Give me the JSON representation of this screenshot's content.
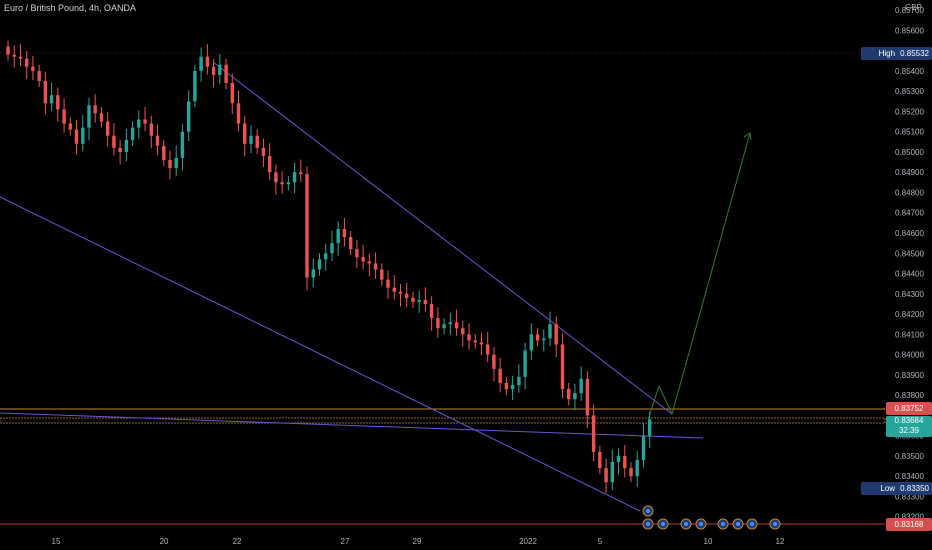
{
  "header": {
    "symbol_title": "Euro / British Pound, 4h, OANDA",
    "currency": "GBP"
  },
  "price_axis": {
    "ticks": [
      "0.85700",
      "0.85600",
      "0.85500",
      "0.85400",
      "0.85300",
      "0.85200",
      "0.85100",
      "0.85000",
      "0.84900",
      "0.84800",
      "0.84700",
      "0.84600",
      "0.84500",
      "0.84400",
      "0.84300",
      "0.84200",
      "0.84100",
      "0.84000",
      "0.83900",
      "0.83800",
      "0.83600",
      "0.83500",
      "0.83400",
      "0.83300",
      "0.83200"
    ]
  },
  "time_axis": {
    "ticks": [
      "15",
      "20",
      "22",
      "27",
      "29",
      "2022",
      "5",
      "10",
      "12"
    ]
  },
  "markers": {
    "high_label": "High",
    "high_value": "0.85532",
    "low_label": "Low",
    "low_value": "0.83350",
    "resistance_value": "0.83752",
    "bottom_value": "0.83168",
    "current_price": "0.83684",
    "countdown": "32:39"
  },
  "event_icons": [
    "event-flag-icon",
    "event-flag-icon",
    "event-flag-icon",
    "event-flag-icon",
    "event-flag-icon",
    "event-flag-icon",
    "event-flag-icon",
    "event-flag-icon",
    "event-flag-icon",
    "event-flag-icon"
  ],
  "colors": {
    "up": "#26a69a",
    "down": "#ef5350",
    "trendline": "#6b55d6",
    "projection": "#2e7d32",
    "hline": "#c9842b",
    "background": "#000000"
  },
  "chart_data": {
    "type": "candlestick",
    "title": "Euro / British Pound, 4h, OANDA",
    "ylim": [
      0.831,
      0.8572
    ],
    "y_unit": "GBP",
    "drawn_levels": [
      0.83752,
      0.83684,
      0.83168
    ],
    "close_path": [
      0.8548,
      0.8547,
      0.8546,
      0.8542,
      0.854,
      0.8535,
      0.8524,
      0.8528,
      0.8521,
      0.8514,
      0.8511,
      0.8504,
      0.8512,
      0.8523,
      0.8519,
      0.8515,
      0.8508,
      0.8502,
      0.85,
      0.8506,
      0.8512,
      0.8516,
      0.8514,
      0.8508,
      0.8503,
      0.8496,
      0.8492,
      0.8497,
      0.851,
      0.8525,
      0.854,
      0.8547,
      0.8542,
      0.8538,
      0.8543,
      0.8534,
      0.8524,
      0.8514,
      0.8504,
      0.8508,
      0.8502,
      0.8498,
      0.849,
      0.8485,
      0.8484,
      0.8485,
      0.849,
      0.8489,
      0.8438,
      0.8442,
      0.8447,
      0.845,
      0.8455,
      0.8462,
      0.8458,
      0.8452,
      0.8448,
      0.8446,
      0.8445,
      0.8442,
      0.8437,
      0.8433,
      0.8431,
      0.843,
      0.8428,
      0.8426,
      0.8427,
      0.8425,
      0.8418,
      0.8413,
      0.8415,
      0.8416,
      0.8413,
      0.841,
      0.8407,
      0.8406,
      0.8405,
      0.84,
      0.8393,
      0.8386,
      0.8383,
      0.8385,
      0.8389,
      0.8402,
      0.841,
      0.8407,
      0.8408,
      0.8415,
      0.8405,
      0.8383,
      0.8378,
      0.8381,
      0.8388,
      0.837,
      0.8352,
      0.8344,
      0.8337,
      0.8347,
      0.835,
      0.8344,
      0.834,
      0.8348,
      0.836,
      0.8368
    ]
  }
}
